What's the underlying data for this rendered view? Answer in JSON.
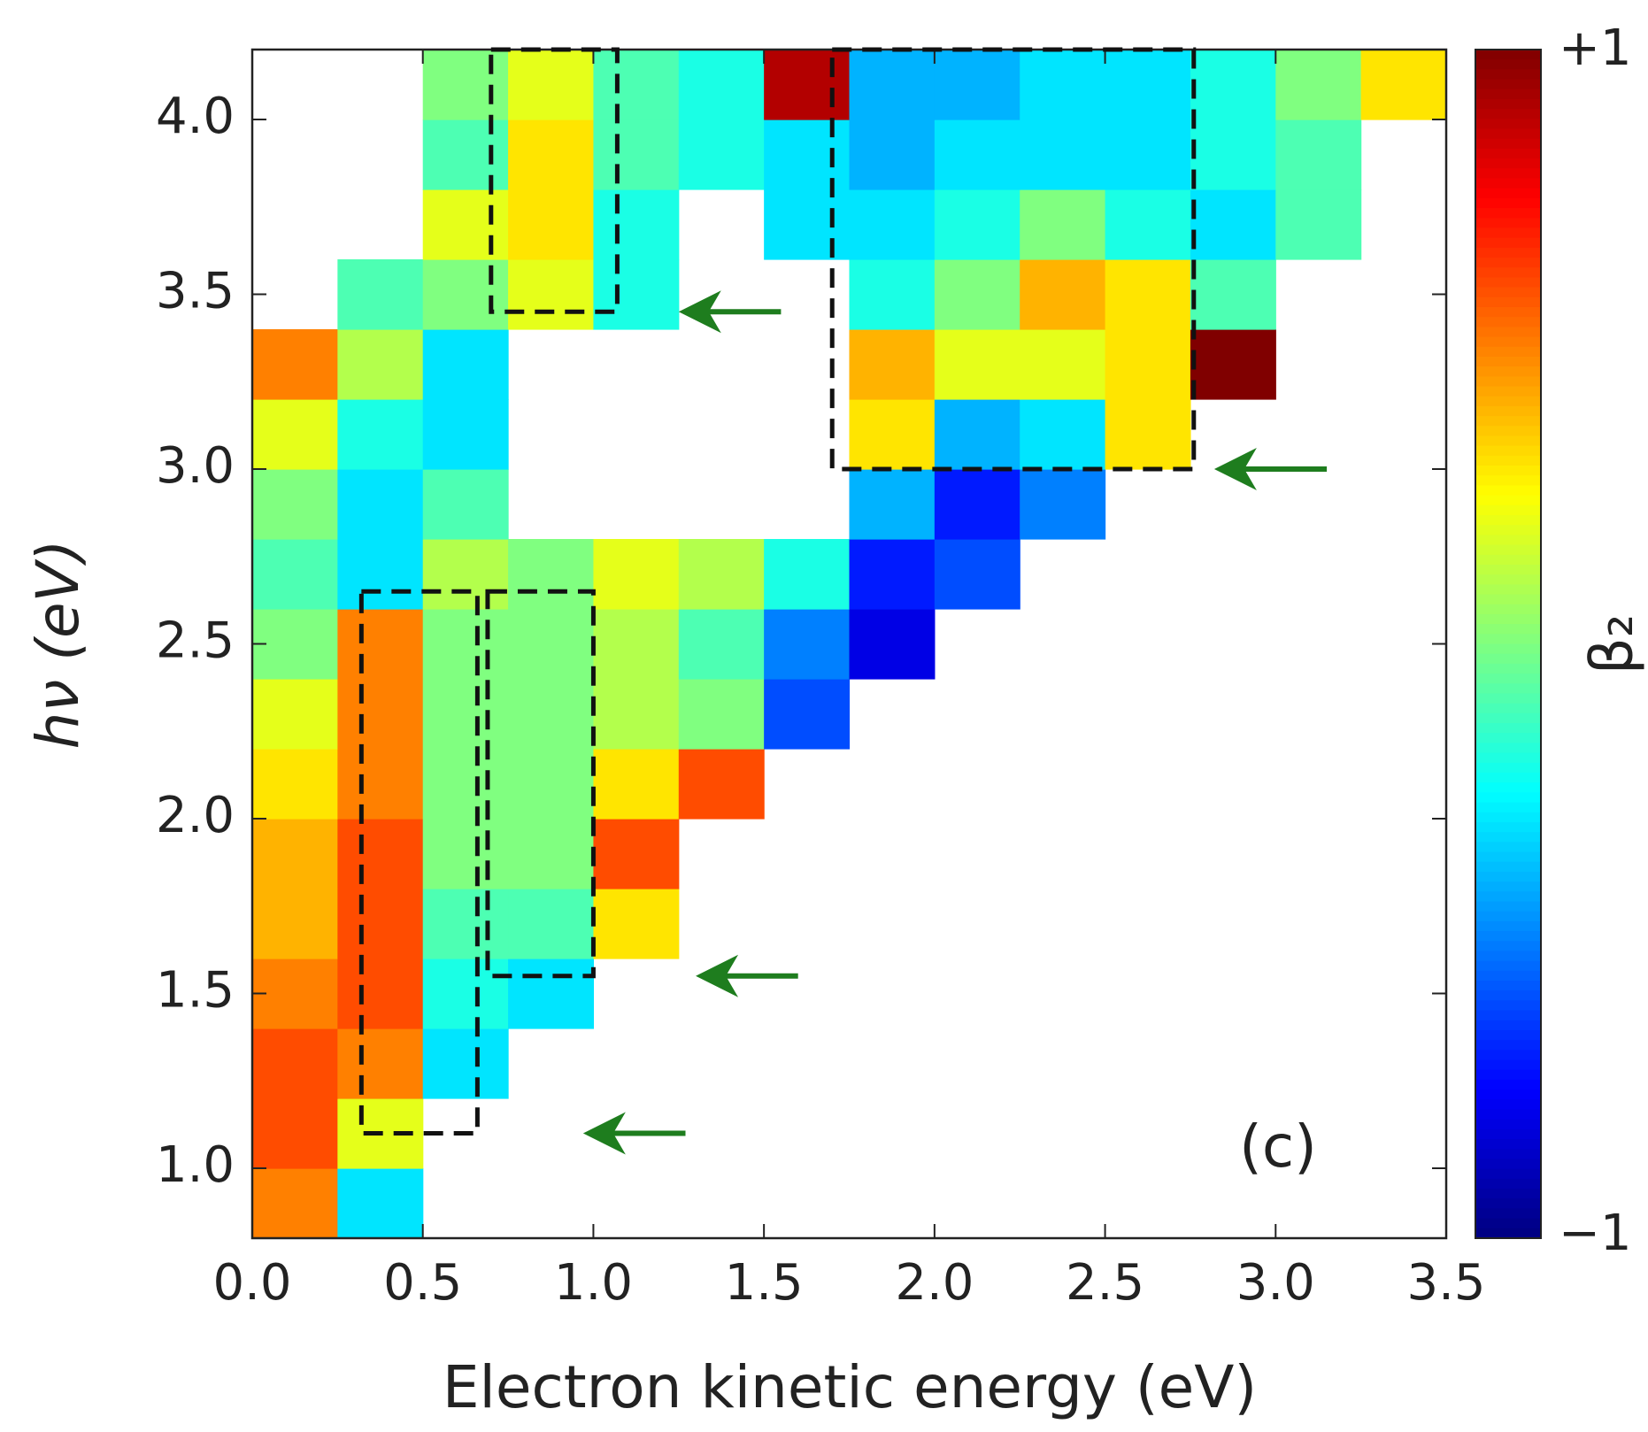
{
  "chart_data": {
    "type": "heatmap",
    "xlabel": "Electron kinetic energy (eV)",
    "ylabel": "hν (eV)",
    "panel_label": "(c)",
    "colorbar_label": "β₂",
    "colormap": "jet",
    "zlim": [
      -1,
      1
    ],
    "zticks": [
      {
        "value": 1,
        "label": "+1"
      },
      {
        "value": -1,
        "label": "−1"
      }
    ],
    "xlim": [
      0,
      3.5
    ],
    "ylim": [
      0.8,
      4.2
    ],
    "xticks": [
      {
        "value": 0,
        "label": "0.0"
      },
      0.5,
      {
        "value": 1,
        "label": "1.0"
      },
      1.5,
      {
        "value": 2,
        "label": "2.0"
      },
      2.5,
      {
        "value": 3,
        "label": "3.0"
      },
      3.5
    ],
    "yticks": [
      {
        "value": 1,
        "label": "1.0"
      },
      1.5,
      {
        "value": 2,
        "label": "2.0"
      },
      2.5,
      {
        "value": 3,
        "label": "3.0"
      },
      3.5,
      {
        "value": 4,
        "label": "4.0"
      }
    ],
    "x_edges": [
      0,
      0.25,
      0.5,
      0.75,
      1,
      1.25,
      1.5,
      1.75,
      2,
      2.25,
      2.5,
      2.75,
      3,
      3.25,
      3.5
    ],
    "y_edges": [
      0.8,
      1,
      1.2,
      1.4,
      1.6,
      1.8,
      2,
      2.2,
      2.4,
      2.6,
      2.8,
      3,
      3.2,
      3.4,
      3.6,
      3.8,
      4,
      4.2
    ],
    "z": [
      [
        0.5,
        -0.3,
        null,
        null,
        null,
        null,
        null,
        null,
        null,
        null,
        null,
        null,
        null,
        null
      ],
      [
        0.6,
        0.2,
        null,
        null,
        null,
        null,
        null,
        null,
        null,
        null,
        null,
        null,
        null,
        null
      ],
      [
        0.6,
        0.5,
        -0.3,
        null,
        null,
        null,
        null,
        null,
        null,
        null,
        null,
        null,
        null,
        null
      ],
      [
        0.5,
        0.6,
        -0.2,
        -0.3,
        null,
        null,
        null,
        null,
        null,
        null,
        null,
        null,
        null,
        null
      ],
      [
        0.4,
        0.6,
        -0.1,
        -0.1,
        0.3,
        null,
        null,
        null,
        null,
        null,
        null,
        null,
        null,
        null
      ],
      [
        0.4,
        0.6,
        0,
        0,
        0.6,
        null,
        null,
        null,
        null,
        null,
        null,
        null,
        null,
        null
      ],
      [
        0.3,
        0.5,
        0,
        0,
        0.3,
        0.6,
        null,
        null,
        null,
        null,
        null,
        null,
        null,
        null
      ],
      [
        0.2,
        0.5,
        0,
        0,
        0.1,
        0,
        -0.6,
        null,
        null,
        null,
        null,
        null,
        null,
        null
      ],
      [
        0,
        0.5,
        0,
        0,
        0.1,
        -0.1,
        -0.5,
        -0.8,
        null,
        null,
        null,
        null,
        null,
        null
      ],
      [
        -0.1,
        -0.3,
        0.1,
        0,
        0.2,
        0.1,
        -0.2,
        -0.7,
        -0.6,
        null,
        null,
        null,
        null,
        null
      ],
      [
        0,
        -0.3,
        -0.1,
        null,
        null,
        null,
        null,
        -0.4,
        -0.7,
        -0.5,
        null,
        null,
        null,
        null
      ],
      [
        0.2,
        -0.2,
        -0.3,
        null,
        null,
        null,
        null,
        0.3,
        -0.4,
        -0.3,
        0.3,
        null,
        null,
        null
      ],
      [
        0.5,
        0.1,
        -0.3,
        null,
        null,
        null,
        null,
        0.4,
        0.2,
        0.2,
        0.3,
        1,
        null,
        null
      ],
      [
        null,
        -0.1,
        0,
        0.2,
        -0.2,
        null,
        null,
        -0.2,
        0,
        0.4,
        0.3,
        -0.1,
        null,
        null
      ],
      [
        null,
        null,
        0.2,
        0.3,
        -0.2,
        null,
        -0.3,
        -0.3,
        -0.2,
        0,
        -0.2,
        -0.3,
        -0.1,
        null
      ],
      [
        null,
        null,
        -0.1,
        0.3,
        -0.1,
        -0.2,
        -0.3,
        -0.4,
        -0.3,
        -0.3,
        -0.3,
        -0.2,
        -0.1,
        null
      ],
      [
        null,
        null,
        0,
        0.2,
        -0.1,
        -0.2,
        0.9,
        -0.4,
        -0.4,
        -0.3,
        -0.3,
        -0.2,
        0,
        0.3
      ]
    ],
    "boxes": [
      {
        "x": [
          0.7,
          1.07
        ],
        "y": [
          3.45,
          4.2
        ]
      },
      {
        "x": [
          1.7,
          2.76
        ],
        "y": [
          3.0,
          4.2
        ]
      },
      {
        "x": [
          0.32,
          0.66
        ],
        "y": [
          1.1,
          2.65
        ]
      },
      {
        "x": [
          0.69,
          1.0
        ],
        "y": [
          1.55,
          2.65
        ]
      }
    ],
    "arrow_color": "#1e7d1e",
    "arrows": [
      {
        "x": [
          1.55,
          1.25
        ],
        "y": 3.45
      },
      {
        "x": [
          3.15,
          2.82
        ],
        "y": 3.0
      },
      {
        "x": [
          1.6,
          1.3
        ],
        "y": 1.55
      },
      {
        "x": [
          1.27,
          0.97
        ],
        "y": 1.1
      }
    ]
  }
}
